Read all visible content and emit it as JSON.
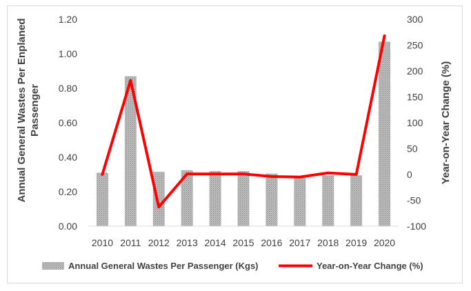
{
  "chart_data": {
    "type": "bar",
    "categories": [
      "2010",
      "2011",
      "2012",
      "2013",
      "2014",
      "2015",
      "2016",
      "2017",
      "2018",
      "2019",
      "2020"
    ],
    "series": [
      {
        "name": "Annual General Wastes Per Passenger (Kgs)",
        "type": "bar",
        "axis": "left",
        "values": [
          0.31,
          0.87,
          0.315,
          0.325,
          0.32,
          0.32,
          0.305,
          0.28,
          0.295,
          0.295,
          1.07
        ],
        "color": "#a6a6a6"
      },
      {
        "name": "Year-on-Year Change (%)",
        "type": "line",
        "axis": "right",
        "values": [
          0,
          182,
          -63,
          1,
          1,
          1,
          -4,
          -5,
          3,
          0,
          268
        ],
        "color": "#ff0000"
      }
    ],
    "ylabel": "Annual General Wastes Per Enplaned Passenger",
    "y2label": "Year-on-Year Change (%)",
    "ylim": [
      0,
      1.2
    ],
    "y2lim": [
      -100,
      300
    ],
    "yticks": [
      "0.00",
      "0.20",
      "0.40",
      "0.60",
      "0.80",
      "1.00",
      "1.20"
    ],
    "y2ticks": [
      "-100",
      "-50",
      "0",
      "50",
      "100",
      "150",
      "200",
      "250",
      "300"
    ],
    "grid": false,
    "legend": "bottom"
  }
}
